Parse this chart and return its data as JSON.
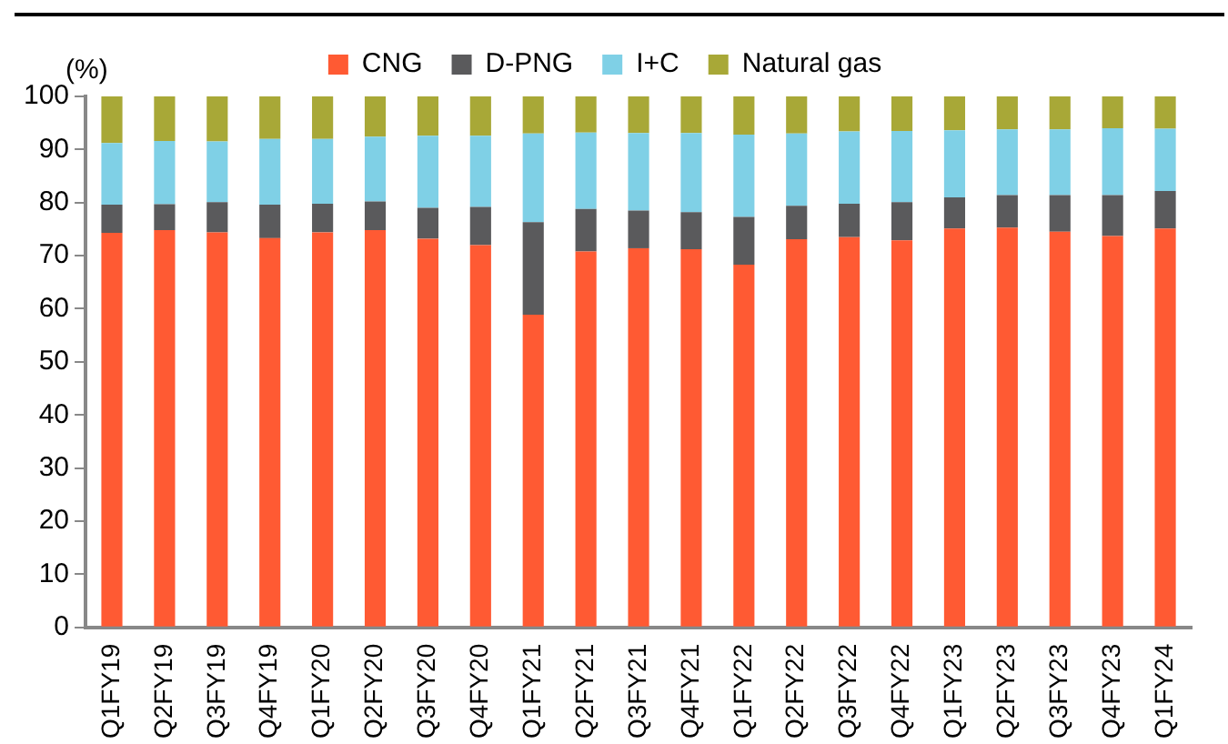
{
  "chart_data": {
    "type": "bar",
    "stacked": true,
    "ylabel": "(%)",
    "categories": [
      "Q1FY19",
      "Q2FY19",
      "Q3FY19",
      "Q4FY19",
      "Q1FY20",
      "Q2FY20",
      "Q3FY20",
      "Q4FY20",
      "Q1FY21",
      "Q2FY21",
      "Q3FY21",
      "Q4FY21",
      "Q1FY22",
      "Q2FY22",
      "Q3FY22",
      "Q4FY22",
      "Q1FY23",
      "Q2FY23",
      "Q3FY23",
      "Q4FY23",
      "Q1FY24"
    ],
    "series": [
      {
        "name": "CNG",
        "color": "#ff5a33",
        "values": [
          74.3,
          74.8,
          74.4,
          73.3,
          74.4,
          74.8,
          73.2,
          72.0,
          58.9,
          70.8,
          71.4,
          71.2,
          68.3,
          73.1,
          73.5,
          72.9,
          75.1,
          75.3,
          74.5,
          73.7,
          75.1
        ]
      },
      {
        "name": "D-PNG",
        "color": "#5a5a5c",
        "values": [
          5.3,
          4.9,
          5.7,
          6.3,
          5.4,
          5.4,
          5.8,
          7.2,
          17.4,
          8.0,
          7.1,
          7.0,
          9.0,
          6.3,
          6.3,
          7.2,
          5.9,
          6.1,
          6.9,
          7.7,
          7.1
        ]
      },
      {
        "name": "I+C",
        "color": "#7fd0e6",
        "values": [
          11.6,
          11.9,
          11.4,
          12.4,
          12.2,
          12.2,
          13.6,
          13.4,
          16.7,
          14.4,
          14.6,
          14.9,
          15.5,
          13.6,
          13.6,
          13.4,
          12.6,
          12.4,
          12.4,
          12.6,
          11.7
        ]
      },
      {
        "name": "Natural gas",
        "color": "#a8a837",
        "values": [
          8.8,
          8.4,
          8.5,
          8.0,
          8.0,
          7.6,
          7.4,
          7.4,
          7.0,
          6.8,
          6.9,
          6.9,
          7.2,
          7.0,
          6.6,
          6.5,
          6.4,
          6.2,
          6.2,
          6.0,
          6.1
        ]
      }
    ],
    "ylim": [
      0,
      100
    ],
    "yticks": [
      0,
      10,
      20,
      30,
      40,
      50,
      60,
      70,
      80,
      90,
      100
    ],
    "grid": false,
    "legend": "top"
  }
}
